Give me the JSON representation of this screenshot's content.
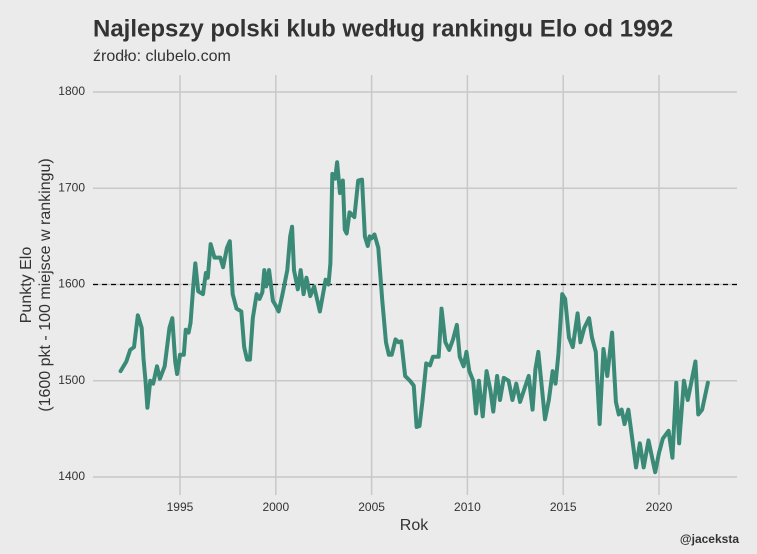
{
  "chart_data": {
    "type": "line",
    "title": "Najlepszy polski klub według rankingu Elo od 1992",
    "subtitle": "źrodło: clubelo.com",
    "xlabel": "Rok",
    "ylabel": [
      "Punkty Elo",
      "(1600 pkt - 100 miejsce w rankingu)"
    ],
    "caption": "@jaceksta",
    "color": "#3b8a77",
    "grid": true,
    "hline": 1600,
    "xlim": [
      1990.46,
      2024.07
    ],
    "ylim": [
      1381.3,
      1817.7
    ],
    "xticks": [
      1995,
      2000,
      2005,
      2010,
      2015,
      2020
    ],
    "yticks": [
      1400,
      1500,
      1600,
      1700,
      1800
    ],
    "x": [
      1991.9,
      1992.2,
      1992.4,
      1992.6,
      1992.8,
      1993.0,
      1993.1,
      1993.2,
      1993.3,
      1993.45,
      1993.6,
      1993.8,
      1993.95,
      1994.2,
      1994.45,
      1994.6,
      1994.75,
      1994.85,
      1995.0,
      1995.2,
      1995.3,
      1995.45,
      1995.55,
      1995.7,
      1995.8,
      1995.95,
      1996.2,
      1996.35,
      1996.45,
      1996.6,
      1996.8,
      1997.1,
      1997.25,
      1997.45,
      1997.6,
      1997.75,
      1997.95,
      1998.2,
      1998.35,
      1998.5,
      1998.65,
      1998.8,
      1999.0,
      1999.15,
      1999.3,
      1999.4,
      1999.5,
      1999.65,
      1999.85,
      2000.0,
      2000.15,
      2000.35,
      2000.6,
      2000.75,
      2000.85,
      2000.95,
      2001.15,
      2001.3,
      2001.45,
      2001.6,
      2001.8,
      2002.0,
      2002.3,
      2002.6,
      2002.75,
      2002.85,
      2002.95,
      2003.1,
      2003.2,
      2003.35,
      2003.5,
      2003.6,
      2003.7,
      2003.85,
      2004.1,
      2004.3,
      2004.5,
      2004.65,
      2004.8,
      2004.9,
      2005.0,
      2005.15,
      2005.35,
      2005.55,
      2005.75,
      2005.9,
      2006.05,
      2006.25,
      2006.4,
      2006.55,
      2006.75,
      2007.0,
      2007.2,
      2007.35,
      2007.5,
      2007.65,
      2007.85,
      2008.05,
      2008.2,
      2008.5,
      2008.65,
      2008.85,
      2009.05,
      2009.25,
      2009.45,
      2009.6,
      2009.8,
      2009.95,
      2010.1,
      2010.3,
      2010.45,
      2010.6,
      2010.8,
      2011.0,
      2011.2,
      2011.35,
      2011.55,
      2011.7,
      2011.9,
      2012.15,
      2012.35,
      2012.55,
      2012.75,
      2012.95,
      2013.2,
      2013.4,
      2013.55,
      2013.7,
      2013.85,
      2014.05,
      2014.25,
      2014.45,
      2014.6,
      2014.75,
      2014.95,
      2015.1,
      2015.3,
      2015.5,
      2015.75,
      2015.9,
      2016.1,
      2016.35,
      2016.5,
      2016.7,
      2016.9,
      2017.1,
      2017.3,
      2017.55,
      2017.75,
      2017.9,
      2018.05,
      2018.2,
      2018.4,
      2018.8,
      2019.0,
      2019.2,
      2019.45,
      2019.8,
      2020.0,
      2020.2,
      2020.5,
      2020.7,
      2020.9,
      2021.05,
      2021.3,
      2021.5,
      2021.75,
      2021.9,
      2022.05,
      2022.25,
      2022.55
    ],
    "values": [
      1510,
      1520,
      1532,
      1535,
      1568,
      1555,
      1522,
      1500,
      1472,
      1500,
      1497,
      1515,
      1502,
      1515,
      1555,
      1565,
      1520,
      1507,
      1527,
      1527,
      1553,
      1550,
      1560,
      1600,
      1622,
      1593,
      1590,
      1612,
      1607,
      1642,
      1628,
      1628,
      1618,
      1638,
      1645,
      1590,
      1575,
      1572,
      1535,
      1522,
      1522,
      1565,
      1590,
      1585,
      1592,
      1615,
      1598,
      1615,
      1583,
      1578,
      1572,
      1590,
      1615,
      1650,
      1660,
      1615,
      1595,
      1615,
      1590,
      1607,
      1588,
      1598,
      1572,
      1605,
      1600,
      1622,
      1715,
      1710,
      1727,
      1695,
      1708,
      1657,
      1653,
      1675,
      1670,
      1708,
      1709,
      1650,
      1640,
      1650,
      1648,
      1652,
      1638,
      1585,
      1540,
      1527,
      1527,
      1543,
      1540,
      1541,
      1505,
      1500,
      1495,
      1452,
      1453,
      1478,
      1518,
      1516,
      1525,
      1525,
      1575,
      1540,
      1532,
      1543,
      1558,
      1525,
      1515,
      1530,
      1510,
      1500,
      1466,
      1500,
      1463,
      1510,
      1490,
      1468,
      1505,
      1480,
      1503,
      1500,
      1480,
      1497,
      1478,
      1490,
      1505,
      1470,
      1512,
      1530,
      1500,
      1460,
      1480,
      1510,
      1497,
      1528,
      1590,
      1585,
      1545,
      1535,
      1570,
      1540,
      1555,
      1565,
      1545,
      1530,
      1455,
      1533,
      1505,
      1550,
      1478,
      1465,
      1470,
      1455,
      1470,
      1410,
      1435,
      1410,
      1438,
      1405,
      1425,
      1440,
      1448,
      1420,
      1498,
      1435,
      1500,
      1480,
      1505,
      1520,
      1465,
      1470,
      1498
    ]
  }
}
